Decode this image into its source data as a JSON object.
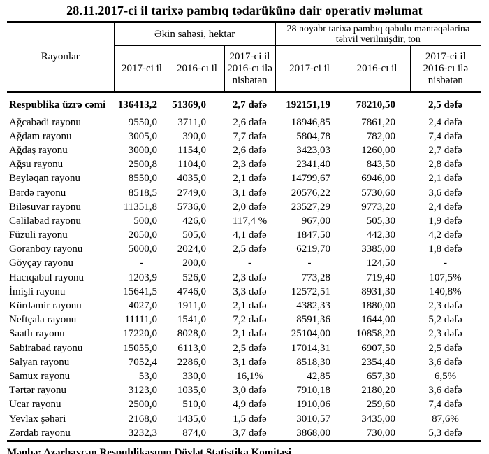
{
  "title": "28.11.2017-ci il tarixə pambıq tədarükünə dair operativ məlumat",
  "table": {
    "col_rayonlar": "Rayonlar",
    "group1": "Əkin sahəsi, hektar",
    "group2": "28 noyabr tarixə pambıq qəbulu məntəqələrinə təhvil verilmişdir, ton",
    "sub_headers": [
      "2017-ci il",
      "2016-cı il",
      "2017-ci il\n2016-cı ilə\nnisbətən",
      "2017-ci il",
      "2016-cı il",
      "2017-ci il\n2016-cı ilə\nnisbətən"
    ],
    "total_row": {
      "name": "Respublika üzrə cəmi",
      "values": [
        "136413,2",
        "51369,0",
        "2,7 dəfə",
        "192151,19",
        "78210,50",
        "2,5 dəfə"
      ]
    },
    "rows": [
      {
        "name": "Ağcabədi rayonu",
        "values": [
          "9550,0",
          "3711,0",
          "2,6 dəfə",
          "18946,85",
          "7861,20",
          "2,4 dəfə"
        ]
      },
      {
        "name": "Ağdam rayonu",
        "values": [
          "3005,0",
          "390,0",
          "7,7 dəfə",
          "5804,78",
          "782,00",
          "7,4 dəfə"
        ]
      },
      {
        "name": "Ağdaş rayonu",
        "values": [
          "3000,0",
          "1154,0",
          "2,6 dəfə",
          "3423,03",
          "1260,00",
          "2,7 dəfə"
        ]
      },
      {
        "name": "Ağsu rayonu",
        "values": [
          "2500,8",
          "1104,0",
          "2,3 dəfə",
          "2341,40",
          "843,50",
          "2,8 dəfə"
        ]
      },
      {
        "name": "Beyləqan rayonu",
        "values": [
          "8550,0",
          "4035,0",
          "2,1 dəfə",
          "14799,67",
          "6946,00",
          "2,1 dəfə"
        ]
      },
      {
        "name": "Bərdə rayonu",
        "values": [
          "8518,5",
          "2749,0",
          "3,1 dəfə",
          "20576,22",
          "5730,60",
          "3,6 dəfə"
        ]
      },
      {
        "name": "Biləsuvar rayonu",
        "values": [
          "11351,8",
          "5736,0",
          "2,0 dəfə",
          "23527,29",
          "9773,20",
          "2,4 dəfə"
        ]
      },
      {
        "name": "Cəlilabad rayonu",
        "values": [
          "500,0",
          "426,0",
          "117,4 %",
          "967,00",
          "505,30",
          "1,9 dəfə"
        ]
      },
      {
        "name": "Füzuli rayonu",
        "values": [
          "2050,0",
          "505,0",
          "4,1 dəfə",
          "1847,50",
          "442,30",
          "4,2 dəfə"
        ]
      },
      {
        "name": "Goranboy rayonu",
        "values": [
          "5000,0",
          "2024,0",
          "2,5 dəfə",
          "6219,70",
          "3385,00",
          "1,8 dəfə"
        ]
      },
      {
        "name": "Göyçay rayonu",
        "values": [
          "-",
          "200,0",
          "-",
          "-",
          "124,50",
          "-"
        ]
      },
      {
        "name": "Hacıqabul rayonu",
        "values": [
          "1203,9",
          "526,0",
          "2,3 dəfə",
          "773,28",
          "719,40",
          "107,5%"
        ]
      },
      {
        "name": "İmişli rayonu",
        "values": [
          "15641,5",
          "4746,0",
          "3,3 dəfə",
          "12572,51",
          "8931,30",
          "140,8%"
        ]
      },
      {
        "name": "Kürdəmir rayonu",
        "values": [
          "4027,0",
          "1911,0",
          "2,1 dəfə",
          "4382,33",
          "1880,00",
          "2,3 dəfə"
        ]
      },
      {
        "name": "Neftçala rayonu",
        "values": [
          "11111,0",
          "1541,0",
          "7,2 dəfə",
          "8591,36",
          "1644,00",
          "5,2 dəfə"
        ]
      },
      {
        "name": "Saatlı rayonu",
        "values": [
          "17220,0",
          "8028,0",
          "2,1 dəfə",
          "25104,00",
          "10858,20",
          "2,3 dəfə"
        ]
      },
      {
        "name": "Sabirabad rayonu",
        "values": [
          "15055,0",
          "6113,0",
          "2,5 dəfə",
          "17014,31",
          "6907,50",
          "2,5 dəfə"
        ]
      },
      {
        "name": "Salyan rayonu",
        "values": [
          "7052,4",
          "2286,0",
          "3,1 dəfə",
          "8518,30",
          "2354,40",
          "3,6 dəfə"
        ]
      },
      {
        "name": "Samux rayonu",
        "values": [
          "53,0",
          "330,0",
          "16,1%",
          "42,85",
          "657,30",
          "6,5%"
        ]
      },
      {
        "name": "Tərtər rayonu",
        "values": [
          "3123,0",
          "1035,0",
          "3,0 dəfə",
          "7910,18",
          "2180,20",
          "3,6 dəfə"
        ]
      },
      {
        "name": "Ucar rayonu",
        "values": [
          "2500,0",
          "510,0",
          "4,9 dəfə",
          "1910,06",
          "259,60",
          "7,4 dəfə"
        ]
      },
      {
        "name": "Yevlax şəhəri",
        "values": [
          "2168,0",
          "1435,0",
          "1,5 dəfə",
          "3010,57",
          "3435,00",
          "87,6%"
        ]
      },
      {
        "name": "Zərdab rayonu",
        "values": [
          "3232,3",
          "874,0",
          "3,7 dəfə",
          "3868,00",
          "730,00",
          "5,3 dəfə"
        ]
      }
    ]
  },
  "footer": "Mənbə: Azərbaycan Respublikasının Dövlət Statistika Komitəsi"
}
